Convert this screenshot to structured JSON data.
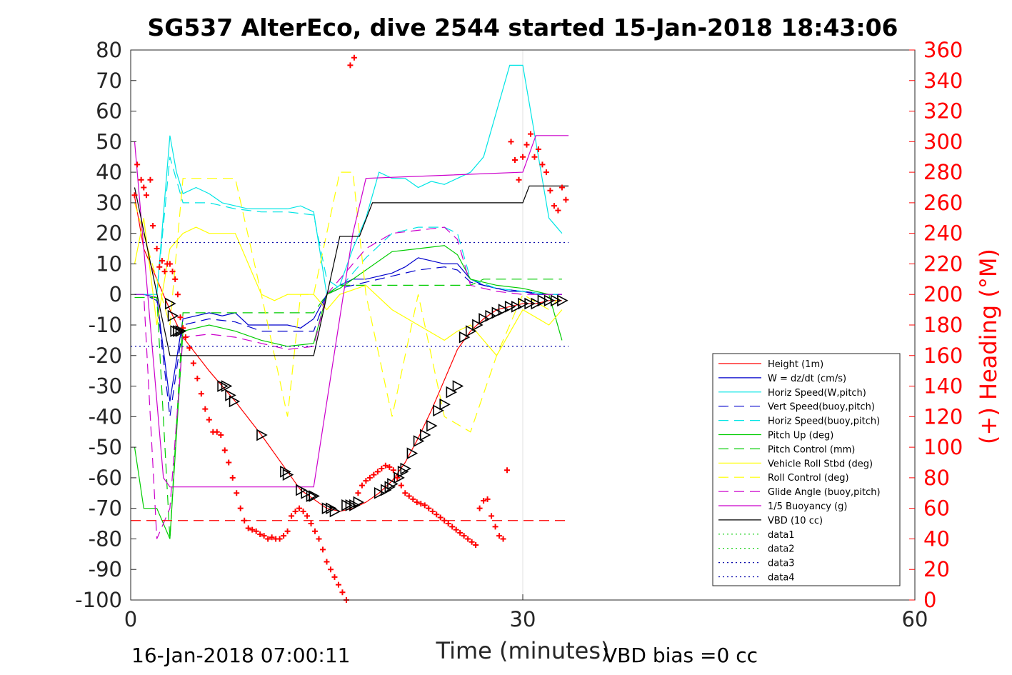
{
  "chart_data": {
    "type": "line",
    "title": "SG537 AlterEco, dive 2544 started 15-Jan-2018 18:43:06",
    "xlabel": "Time (minutes)",
    "ylabel_right": "(+) Heading (°M)",
    "footer_left": "16-Jan-2018 07:00:11",
    "footer_right": "VBD bias =0 cc",
    "xlim": [
      0,
      60
    ],
    "ylim": [
      -100,
      80
    ],
    "ylim_right": [
      0,
      360
    ],
    "xticks": [
      "0",
      "30",
      "60"
    ],
    "yticks": [
      "80",
      "70",
      "60",
      "50",
      "40",
      "30",
      "20",
      "10",
      "0",
      "-10",
      "-20",
      "-30",
      "-40",
      "-50",
      "-60",
      "-70",
      "-80",
      "-90",
      "-100"
    ],
    "yticks_right": [
      "360",
      "340",
      "320",
      "300",
      "280",
      "260",
      "240",
      "220",
      "200",
      "180",
      "160",
      "140",
      "120",
      "100",
      "80",
      "60",
      "40",
      "20",
      "0"
    ],
    "grid_x": [
      30
    ],
    "legend_position": "bottom-right",
    "series": [
      {
        "name": "Height (1m)",
        "color": "#ff0000",
        "style": "solid",
        "x": [
          0.3,
          1,
          2,
          3,
          4,
          6,
          8,
          10,
          12,
          13,
          14,
          15,
          16,
          17,
          18,
          19,
          20,
          21,
          22,
          23,
          24,
          25,
          26,
          27,
          28,
          29,
          30,
          31,
          32,
          33
        ],
        "y": [
          32,
          15,
          5,
          -5,
          -14,
          -25,
          -35,
          -46,
          -58,
          -64,
          -67,
          -70,
          -71,
          -70,
          -68,
          -65,
          -61,
          -55,
          -47,
          -38,
          -28,
          -18,
          -12,
          -8,
          -5,
          -4,
          -3,
          -3,
          -2,
          -2
        ]
      },
      {
        "name": "W = dz/dt (cm/s)",
        "color": "#0000cc",
        "style": "solid",
        "x": [
          0.3,
          1,
          2,
          3,
          4,
          5,
          6,
          7,
          8,
          9,
          10,
          11,
          12,
          13,
          14,
          15,
          16,
          17,
          18,
          19,
          20,
          21,
          22,
          23,
          24,
          25,
          26,
          27,
          28,
          29,
          30,
          31,
          32,
          33
        ],
        "y": [
          0,
          0,
          -1,
          -35,
          -8,
          -7,
          -6,
          -7,
          -6,
          -10,
          -10,
          -10,
          -10,
          -11,
          -8,
          0,
          3,
          5,
          5,
          6,
          7,
          9,
          12,
          11,
          10,
          10,
          5,
          3,
          2,
          1,
          1,
          0,
          0,
          0
        ]
      },
      {
        "name": "Horiz Speed(W,pitch)",
        "color": "#00e5e5",
        "style": "solid",
        "x": [
          0.3,
          1,
          2,
          3,
          3.5,
          4,
          5,
          6,
          7,
          8,
          9,
          10,
          11,
          12,
          13,
          14,
          15,
          16,
          17,
          18,
          19,
          20,
          21,
          22,
          23,
          24,
          25,
          26,
          27,
          28,
          29,
          30,
          31,
          32,
          33
        ],
        "y": [
          0,
          0,
          0,
          52,
          40,
          33,
          35,
          33,
          30,
          29,
          28,
          28,
          28,
          28,
          29,
          27,
          0,
          3,
          15,
          25,
          40,
          38,
          38,
          35,
          37,
          36,
          38,
          40,
          45,
          60,
          75,
          75,
          50,
          25,
          20
        ]
      },
      {
        "name": "Vert Speed(buoy,pitch)",
        "color": "#0000cc",
        "style": "dashed",
        "x": [
          0.3,
          1,
          2,
          3,
          4,
          6,
          8,
          10,
          12,
          14,
          15,
          16,
          18,
          20,
          22,
          24,
          25,
          26,
          28,
          30,
          32,
          33
        ],
        "y": [
          0,
          0,
          -2,
          -40,
          -10,
          -8,
          -9,
          -12,
          -12,
          -12,
          0,
          2,
          4,
          6,
          8,
          9,
          8,
          4,
          2,
          1,
          0,
          0
        ]
      },
      {
        "name": "Horiz Speed(buoy,pitch)",
        "color": "#00e5e5",
        "style": "dashed",
        "x": [
          0.3,
          1,
          2,
          3,
          4,
          6,
          8,
          10,
          12,
          14,
          15,
          16,
          18,
          20,
          22,
          24,
          25,
          26,
          28,
          30,
          32,
          33
        ],
        "y": [
          0,
          0,
          0,
          45,
          30,
          30,
          28,
          27,
          27,
          26,
          5,
          2,
          12,
          20,
          22,
          22,
          20,
          5,
          2,
          1,
          0,
          0
        ]
      },
      {
        "name": "Pitch Up (deg)",
        "color": "#00cc00",
        "style": "solid",
        "x": [
          0.3,
          1,
          2,
          3,
          4,
          6,
          8,
          10,
          12,
          14,
          15,
          16,
          18,
          20,
          22,
          24,
          25,
          26,
          28,
          30,
          32,
          33
        ],
        "y": [
          -50,
          -70,
          -70,
          -80,
          -12,
          -10,
          -12,
          -15,
          -17,
          -16,
          0,
          2,
          8,
          14,
          15,
          16,
          13,
          5,
          3,
          2,
          0,
          -15
        ]
      },
      {
        "name": "Pitch Control (mm)",
        "color": "#00cc00",
        "style": "dashed",
        "x": [
          0.3,
          2,
          3,
          4,
          14,
          15,
          16,
          26,
          27,
          33
        ],
        "y": [
          -1,
          -1,
          -80,
          -6,
          -6,
          0,
          3,
          3,
          5,
          5
        ]
      },
      {
        "name": "Vehicle Roll Stbd (deg)",
        "color": "#ffff00",
        "style": "solid",
        "x": [
          0.3,
          1,
          2,
          3,
          4,
          5,
          6,
          8,
          10,
          11,
          12,
          14,
          15,
          16,
          18,
          20,
          22,
          24,
          25,
          26,
          28,
          30,
          32,
          33
        ],
        "y": [
          10,
          25,
          -10,
          15,
          20,
          22,
          20,
          20,
          0,
          -2,
          0,
          0,
          -5,
          0,
          3,
          -5,
          -10,
          -15,
          -12,
          -10,
          -20,
          -5,
          -10,
          -5
        ]
      },
      {
        "name": "Roll Control (deg)",
        "color": "#ffff00",
        "style": "dashed",
        "x": [
          0.3,
          3,
          4,
          8,
          10,
          12,
          13,
          14,
          16,
          17,
          18,
          20,
          22,
          24,
          26,
          28,
          30,
          32,
          33
        ],
        "y": [
          30,
          -10,
          38,
          38,
          0,
          -40,
          0,
          0,
          40,
          40,
          0,
          -40,
          0,
          -40,
          -45,
          -20,
          0,
          -5,
          0
        ]
      },
      {
        "name": "Glide Angle (buoy,pitch)",
        "color": "#cc00cc",
        "style": "dashed",
        "x": [
          0.3,
          1,
          2,
          3,
          4,
          6,
          8,
          10,
          12,
          14,
          15,
          16,
          18,
          20,
          22,
          24,
          25,
          26,
          28,
          30,
          32,
          33
        ],
        "y": [
          0,
          0,
          -80,
          -70,
          -14,
          -13,
          -14,
          -16,
          -18,
          -17,
          0,
          5,
          15,
          20,
          21,
          22,
          18,
          3,
          1,
          0,
          0,
          0
        ]
      },
      {
        "name": "1/5 Buoyancy (g)",
        "color": "#cc00cc",
        "style": "solid",
        "x": [
          0.3,
          2.5,
          3,
          14,
          17,
          18,
          30,
          31,
          33.5
        ],
        "y": [
          50,
          -60,
          -63,
          -63,
          20,
          38,
          40,
          52,
          52
        ]
      },
      {
        "name": "VBD (10 cc)",
        "color": "#000000",
        "style": "solid",
        "x": [
          0.3,
          3,
          14,
          16,
          17.5,
          18.5,
          30,
          30.5,
          33.5
        ],
        "y": [
          35,
          -20,
          -20,
          19,
          19,
          30,
          30,
          35.5,
          35.5
        ]
      },
      {
        "name": "data1",
        "color": "#00cc00",
        "style": "dotted",
        "x": [],
        "y": []
      },
      {
        "name": "data2",
        "color": "#00cc00",
        "style": "dotted",
        "x": [],
        "y": []
      },
      {
        "name": "data3",
        "color": "#0000aa",
        "style": "dotted",
        "x": [
          0,
          33.5
        ],
        "y": [
          17,
          17
        ]
      },
      {
        "name": "data4",
        "color": "#0000aa",
        "style": "dotted",
        "x": [
          0,
          33.5
        ],
        "y": [
          -17,
          -17
        ]
      }
    ],
    "reference_line": {
      "color": "#ff0000",
      "style": "dashed",
      "y": -74,
      "x": [
        0,
        33.5
      ]
    },
    "heading_points": {
      "color": "#ff0000",
      "x": [
        0.3,
        0.5,
        0.8,
        1,
        1.2,
        1.5,
        1.7,
        2.0,
        2.2,
        2.4,
        2.6,
        2.8,
        3.0,
        3.2,
        3.4,
        3.6,
        3.8,
        4.0,
        4.2,
        4.5,
        4.8,
        5.1,
        5.4,
        5.7,
        6.0,
        6.3,
        6.6,
        6.9,
        7.2,
        7.5,
        7.8,
        8.1,
        8.4,
        8.7,
        9.0,
        9.3,
        9.6,
        9.9,
        10.2,
        10.5,
        10.8,
        11.1,
        11.4,
        11.7,
        12.0,
        12.3,
        12.6,
        12.9,
        13.2,
        13.5,
        13.8,
        14.1,
        14.4,
        14.7,
        15.0,
        15.3,
        15.6,
        15.9,
        16.2,
        16.5,
        16.8,
        17.1,
        17.4,
        17.7,
        18.0,
        18.3,
        18.6,
        18.9,
        19.2,
        19.5,
        19.8,
        20.1,
        20.4,
        20.7,
        21.0,
        21.3,
        21.6,
        21.9,
        22.2,
        22.5,
        22.8,
        23.1,
        23.4,
        23.7,
        24.0,
        24.3,
        24.6,
        24.9,
        25.2,
        25.5,
        25.8,
        26.1,
        26.4,
        26.7,
        27.0,
        27.3,
        27.6,
        27.9,
        28.2,
        28.5,
        28.8,
        29.1,
        29.4,
        29.7,
        30.0,
        30.3,
        30.6,
        30.9,
        31.2,
        31.5,
        31.8,
        32.1,
        32.4,
        32.7,
        33.0,
        33.3
      ],
      "y": [
        265,
        285,
        275,
        270,
        265,
        275,
        245,
        230,
        218,
        222,
        215,
        220,
        220,
        215,
        210,
        200,
        185,
        178,
        172,
        165,
        155,
        145,
        135,
        125,
        118,
        110,
        110,
        108,
        98,
        90,
        80,
        70,
        60,
        52,
        47,
        46,
        45,
        43,
        42,
        40,
        41,
        40,
        40,
        42,
        45,
        55,
        58,
        60,
        58,
        55,
        50,
        45,
        40,
        33,
        25,
        20,
        15,
        10,
        5,
        0,
        350,
        355,
        70,
        75,
        78,
        80,
        82,
        84,
        86,
        88,
        87,
        85,
        80,
        75,
        70,
        68,
        66,
        64,
        63,
        62,
        60,
        58,
        56,
        54,
        52,
        50,
        48,
        46,
        44,
        42,
        40,
        38,
        36,
        60,
        65,
        66,
        55,
        48,
        42,
        40,
        85,
        300,
        288,
        275,
        290,
        298,
        305,
        290,
        295,
        285,
        280,
        268,
        258,
        255,
        270,
        262
      ]
    },
    "markers": {
      "color": "#000000",
      "x": [
        3.0,
        3.2,
        3.4,
        3.6,
        3.8,
        7.0,
        7.3,
        7.6,
        7.9,
        10.0,
        11.8,
        12.0,
        13.0,
        13.4,
        13.8,
        14.0,
        15.0,
        15.3,
        15.6,
        16.5,
        16.8,
        17.1,
        17.4,
        19.0,
        19.5,
        19.8,
        20.0,
        20.5,
        20.8,
        21.0,
        21.5,
        22.0,
        22.5,
        23.0,
        23.5,
        24.0,
        24.5,
        25.0,
        25.5,
        26.0,
        26.5,
        27.0,
        27.5,
        28.0,
        28.5,
        29.0,
        29.5,
        30.0,
        30.5,
        31.0,
        31.5,
        32.0,
        32.5,
        33.0
      ],
      "y": [
        -3,
        -7,
        -12,
        -12,
        -12,
        -30,
        -30,
        -33,
        -35,
        -46,
        -58,
        -59,
        -64,
        -65,
        -66,
        -66,
        -70,
        -70,
        -71,
        -69,
        -69,
        -69,
        -68,
        -65,
        -64,
        -63,
        -62,
        -60,
        -58,
        -57,
        -52,
        -48,
        -46,
        -43,
        -38,
        -36,
        -32,
        -30,
        -14,
        -12,
        -10,
        -8,
        -7,
        -6,
        -5,
        -4,
        -4,
        -3,
        -3,
        -3,
        -2,
        -2,
        -2,
        -2
      ]
    },
    "legend": [
      "Height (1m)",
      "W = dz/dt (cm/s)",
      "Horiz Speed(W,pitch)",
      "Vert Speed(buoy,pitch)",
      "Horiz Speed(buoy,pitch)",
      "Pitch Up (deg)",
      "Pitch Control (mm)",
      "Vehicle Roll Stbd (deg)",
      "Roll Control (deg)",
      "Glide Angle (buoy,pitch)",
      "1/5 Buoyancy (g)",
      "VBD (10 cc)",
      "data1",
      "data2",
      "data3",
      "data4"
    ]
  }
}
